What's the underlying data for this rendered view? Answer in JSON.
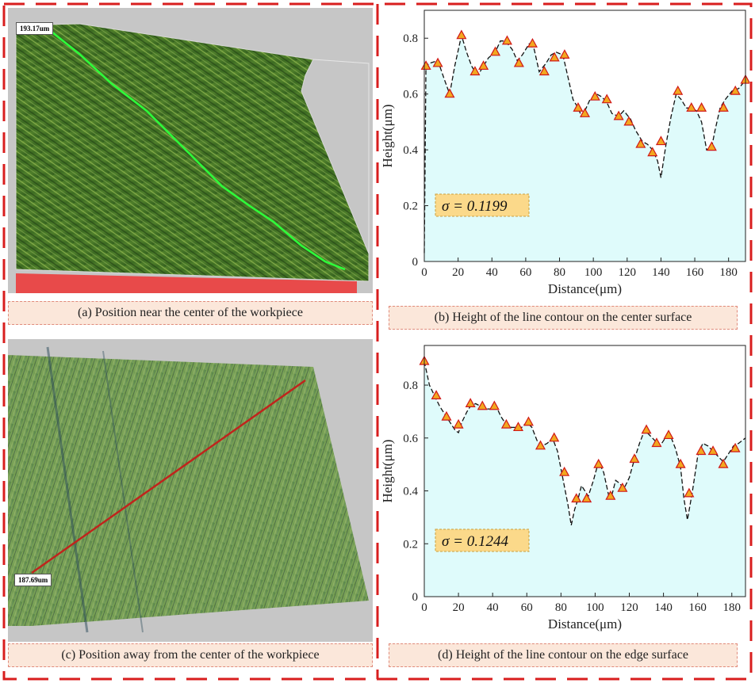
{
  "panels": {
    "a": {
      "caption": "(a) Position near the center of the workpiece",
      "measure_label": "193.17um"
    },
    "b": {
      "caption": "(b) Height of the line contour on the center surface"
    },
    "c": {
      "caption": "(c) Position away from the center of the workpiece",
      "measure_label": "187.69um"
    },
    "d": {
      "caption": "(d) Height of the line contour on the edge surface"
    }
  },
  "colors": {
    "frame_dash": "#d81e1e",
    "fill": "#dffbfb",
    "marker_fill": "#f2a81f",
    "marker_stroke": "#d01818",
    "sigma_bg": "#fbd98a",
    "line_green": "#2dff3a",
    "line_red": "#c0241c"
  },
  "chart_data": [
    {
      "type": "line",
      "xlabel": "Distance(μm)",
      "ylabel": "Height(μm)",
      "xlim": [
        0,
        190
      ],
      "ylim": [
        0,
        0.9
      ],
      "xticks": [
        0,
        20,
        40,
        60,
        80,
        100,
        120,
        140,
        160,
        180
      ],
      "yticks": [
        0,
        0.2,
        0.4,
        0.6,
        0.8
      ],
      "annotation": "σ = 0.1199",
      "curve": {
        "x": [
          0,
          1,
          3,
          8,
          12,
          15,
          18,
          22,
          25,
          28,
          30,
          32,
          35,
          38,
          42,
          45,
          48,
          52,
          55,
          58,
          62,
          65,
          68,
          72,
          75,
          78,
          82,
          85,
          88,
          91,
          93,
          95,
          98,
          102,
          105,
          108,
          111,
          115,
          118,
          122,
          125,
          129,
          132,
          135,
          138,
          140,
          143,
          146,
          149,
          152,
          155,
          158,
          161,
          164,
          167,
          170,
          172,
          175,
          178,
          182,
          186,
          190
        ],
        "y": [
          0.03,
          0.7,
          0.71,
          0.72,
          0.65,
          0.6,
          0.7,
          0.81,
          0.75,
          0.7,
          0.68,
          0.67,
          0.7,
          0.73,
          0.75,
          0.79,
          0.79,
          0.76,
          0.72,
          0.74,
          0.78,
          0.76,
          0.68,
          0.71,
          0.74,
          0.75,
          0.74,
          0.66,
          0.58,
          0.55,
          0.52,
          0.54,
          0.58,
          0.6,
          0.59,
          0.57,
          0.53,
          0.52,
          0.54,
          0.51,
          0.47,
          0.43,
          0.42,
          0.4,
          0.36,
          0.3,
          0.42,
          0.52,
          0.6,
          0.58,
          0.55,
          0.55,
          0.54,
          0.5,
          0.4,
          0.41,
          0.47,
          0.55,
          0.58,
          0.61,
          0.62,
          0.65
        ]
      },
      "markers": {
        "x": [
          1,
          8,
          15,
          22,
          30,
          35,
          42,
          49,
          56,
          64,
          71,
          77,
          83,
          91,
          95,
          101,
          108,
          115,
          121,
          128,
          135,
          140,
          150,
          158,
          164,
          170,
          177,
          184,
          190
        ],
        "y": [
          0.7,
          0.71,
          0.6,
          0.81,
          0.68,
          0.7,
          0.75,
          0.79,
          0.71,
          0.78,
          0.68,
          0.73,
          0.74,
          0.55,
          0.53,
          0.59,
          0.58,
          0.52,
          0.5,
          0.42,
          0.39,
          0.43,
          0.61,
          0.55,
          0.55,
          0.41,
          0.55,
          0.61,
          0.65
        ]
      }
    },
    {
      "type": "line",
      "xlabel": "Distance(μm)",
      "ylabel": "Height(μm)",
      "xlim": [
        0,
        188
      ],
      "ylim": [
        0,
        0.95
      ],
      "xticks": [
        0,
        20,
        40,
        60,
        80,
        100,
        120,
        140,
        160,
        180
      ],
      "yticks": [
        0,
        0.2,
        0.4,
        0.6,
        0.8
      ],
      "annotation": "σ = 0.1244",
      "curve": {
        "x": [
          0,
          3,
          6,
          9,
          12,
          15,
          18,
          20,
          22,
          25,
          27,
          30,
          33,
          36,
          39,
          42,
          45,
          48,
          51,
          54,
          57,
          60,
          63,
          66,
          69,
          72,
          75,
          78,
          81,
          84,
          86,
          88,
          90,
          92,
          94,
          96,
          99,
          102,
          105,
          108,
          110,
          112,
          114,
          117,
          120,
          123,
          126,
          129,
          132,
          135,
          138,
          141,
          144,
          147,
          150,
          152,
          154,
          157,
          160,
          163,
          166,
          169,
          172,
          175,
          178,
          181,
          184,
          188
        ],
        "y": [
          0.89,
          0.8,
          0.76,
          0.72,
          0.69,
          0.66,
          0.63,
          0.62,
          0.66,
          0.7,
          0.72,
          0.73,
          0.72,
          0.71,
          0.71,
          0.72,
          0.68,
          0.65,
          0.64,
          0.64,
          0.64,
          0.66,
          0.64,
          0.59,
          0.57,
          0.58,
          0.6,
          0.55,
          0.45,
          0.35,
          0.27,
          0.33,
          0.37,
          0.42,
          0.4,
          0.38,
          0.44,
          0.51,
          0.47,
          0.38,
          0.39,
          0.44,
          0.43,
          0.41,
          0.45,
          0.52,
          0.58,
          0.63,
          0.61,
          0.59,
          0.57,
          0.6,
          0.61,
          0.56,
          0.49,
          0.37,
          0.29,
          0.4,
          0.53,
          0.58,
          0.57,
          0.55,
          0.53,
          0.51,
          0.54,
          0.57,
          0.58,
          0.6
        ]
      },
      "markers": {
        "x": [
          0,
          7,
          13,
          20,
          27,
          34,
          41,
          48,
          55,
          61,
          68,
          76,
          82,
          89,
          95,
          102,
          109,
          116,
          123,
          130,
          136,
          143,
          150,
          155,
          162,
          169,
          175,
          182
        ],
        "y": [
          0.89,
          0.76,
          0.68,
          0.65,
          0.73,
          0.72,
          0.72,
          0.65,
          0.64,
          0.66,
          0.57,
          0.6,
          0.47,
          0.37,
          0.37,
          0.5,
          0.38,
          0.41,
          0.52,
          0.63,
          0.58,
          0.61,
          0.5,
          0.39,
          0.55,
          0.55,
          0.5,
          0.56
        ]
      }
    }
  ]
}
